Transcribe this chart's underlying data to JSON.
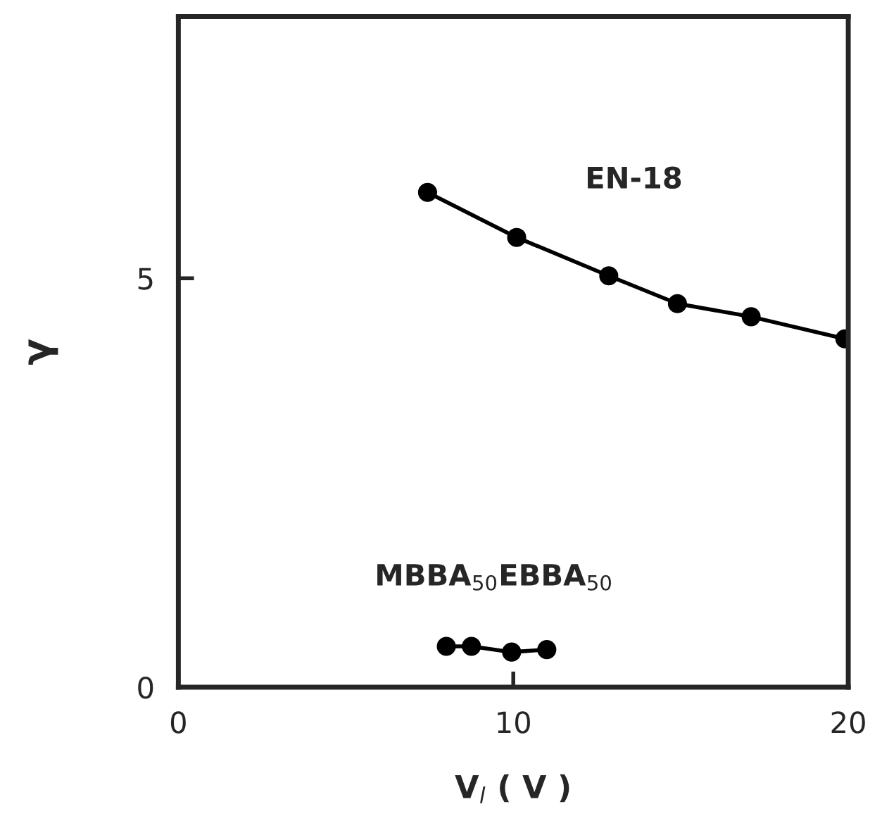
{
  "chart_data": {
    "type": "line",
    "xlabel": "V$_{l}$ ( V )",
    "ylabel": "γ",
    "xlim": [
      0,
      20
    ],
    "ylim": [
      0,
      8.2
    ],
    "xticks": [
      0,
      10,
      20
    ],
    "yticks": [
      0,
      5
    ],
    "grid": false,
    "marker": "circle",
    "line_style": "solid",
    "legend": false,
    "series": [
      {
        "name": "EN-18",
        "color": "#000000",
        "x": [
          7.44,
          10.1,
          12.85,
          14.9,
          17.1,
          19.9
        ],
        "values": [
          6.05,
          5.5,
          5.03,
          4.69,
          4.53,
          4.26
        ]
      },
      {
        "name": "MBBA$_{50}$EBBA$_{50}$",
        "color": "#000000",
        "x": [
          8.0,
          8.75,
          9.95,
          11.0
        ],
        "values": [
          0.5,
          0.5,
          0.43,
          0.46
        ]
      }
    ]
  }
}
